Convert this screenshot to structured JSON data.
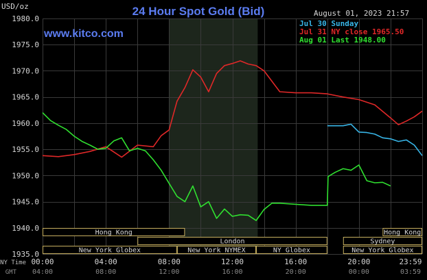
{
  "window": {
    "title": "24 Hour Spot Gold (Bid)",
    "unit_label": "USD/oz",
    "datetime": "August 01, 2023 21:57",
    "watermark": "www.kitco.com"
  },
  "colors": {
    "background": "#000000",
    "grid": "#3a3a3a",
    "active_band": "#1d261c",
    "title": "#5b7cf0",
    "watermark": "#5b7cf0",
    "jul30": "#38b6e8",
    "jul31": "#e02828",
    "aug01": "#30e030",
    "text": "#d8d8d8",
    "session_border": "#c8b060"
  },
  "chart_data": {
    "type": "line",
    "title": "24 Hour Spot Gold (Bid)",
    "ylabel": "USD/oz",
    "ylim": [
      1935,
      1980
    ],
    "y_ticks": [
      "1980.0",
      "1975.0",
      "1970.0",
      "1965.0",
      "1960.0",
      "1955.0",
      "1950.0",
      "1945.0",
      "1940.0",
      "1935.0"
    ],
    "xlim": [
      0,
      24
    ],
    "x_ticks": [
      0,
      4,
      8,
      12,
      16,
      20,
      24
    ],
    "x_tick_labels_ny": [
      "00:00",
      "04:00",
      "08:00",
      "12:00",
      "16:00",
      "20:00",
      "23:59"
    ],
    "x_tick_labels_gmt": [
      "04:00",
      "08:00",
      "12:00",
      "16:00",
      "20:00",
      "00:00",
      "03:59"
    ],
    "x_axis_labels": [
      "NY Time",
      "GMT"
    ],
    "grid": true,
    "legend_position": "top-right",
    "series": [
      {
        "name": "Jul 30 Sunday",
        "legend": "Jul 30 Sunday",
        "color": "#38b6e8",
        "x": [
          18,
          19,
          19.5,
          20,
          20.5,
          21,
          21.5,
          22,
          22.5,
          23,
          23.5,
          24
        ],
        "y": [
          1959.5,
          1959.5,
          1959.8,
          1958.3,
          1958.2,
          1957.9,
          1957.2,
          1957.0,
          1956.5,
          1956.8,
          1955.8,
          1953.8
        ]
      },
      {
        "name": "Jul 31 NY close 1965.50",
        "legend": "Jul 31 NY close 1965.50",
        "color": "#e02828",
        "x": [
          0,
          1,
          2,
          3,
          4,
          5,
          6,
          7,
          7.5,
          8,
          8.5,
          9,
          9.5,
          10,
          10.5,
          11,
          11.5,
          12,
          12.5,
          13,
          13.5,
          14,
          15,
          16,
          17,
          18,
          19,
          20,
          21,
          22,
          22.5,
          23,
          23.5,
          24
        ],
        "y": [
          1953.8,
          1953.6,
          1954.0,
          1954.6,
          1955.5,
          1953.5,
          1955.8,
          1955.5,
          1957.6,
          1958.7,
          1964.2,
          1966.8,
          1970.2,
          1968.8,
          1966.0,
          1969.5,
          1971.0,
          1971.4,
          1971.9,
          1971.3,
          1971.0,
          1970.0,
          1966.0,
          1965.8,
          1965.8,
          1965.6,
          1965.0,
          1964.5,
          1963.5,
          1961.0,
          1959.7,
          1960.4,
          1961.2,
          1962.3
        ]
      },
      {
        "name": "Aug 01 Last 1948.00",
        "legend": "Aug 01 Last 1948.00",
        "color": "#30e030",
        "x": [
          0,
          0.5,
          1,
          1.5,
          2,
          2.5,
          3,
          3.5,
          4,
          4.5,
          5,
          5.5,
          6,
          6.5,
          7,
          7.5,
          8,
          8.5,
          9,
          9.5,
          10,
          10.5,
          11,
          11.5,
          12,
          12.5,
          13,
          13.5,
          14,
          14.5,
          15,
          16,
          17,
          18,
          18.05,
          18.5,
          19,
          19.5,
          20,
          20.5,
          21,
          21.5,
          22
        ],
        "y": [
          1962.0,
          1960.5,
          1959.6,
          1958.8,
          1957.5,
          1956.5,
          1955.8,
          1955.0,
          1955.2,
          1956.6,
          1957.2,
          1954.7,
          1955.2,
          1954.7,
          1953.0,
          1951.0,
          1948.5,
          1946.0,
          1945.0,
          1948.0,
          1944.0,
          1945.0,
          1941.8,
          1943.6,
          1942.2,
          1942.5,
          1942.4,
          1941.4,
          1943.5,
          1944.7,
          1944.7,
          1944.5,
          1944.3,
          1944.3,
          1949.8,
          1950.6,
          1951.3,
          1951.0,
          1952.0,
          1949.0,
          1948.6,
          1948.7,
          1948.0
        ]
      }
    ],
    "active_band_range": [
      8,
      13.6
    ],
    "sessions": [
      {
        "label": "Hong Kong",
        "start": 0,
        "end": 9
      },
      {
        "label": "Hong Kong",
        "start": 21.5,
        "end": 24
      },
      {
        "label": "London",
        "start": 6,
        "end": 18
      },
      {
        "label": "Sydney",
        "start": 19,
        "end": 24
      },
      {
        "label": "New York Globex",
        "start": 0,
        "end": 8.5
      },
      {
        "label": "New York NYMEX",
        "start": 8.5,
        "end": 13.5
      },
      {
        "label": "NY Globex",
        "start": 13.5,
        "end": 18
      },
      {
        "label": "New York Globex",
        "start": 19,
        "end": 24
      }
    ]
  }
}
